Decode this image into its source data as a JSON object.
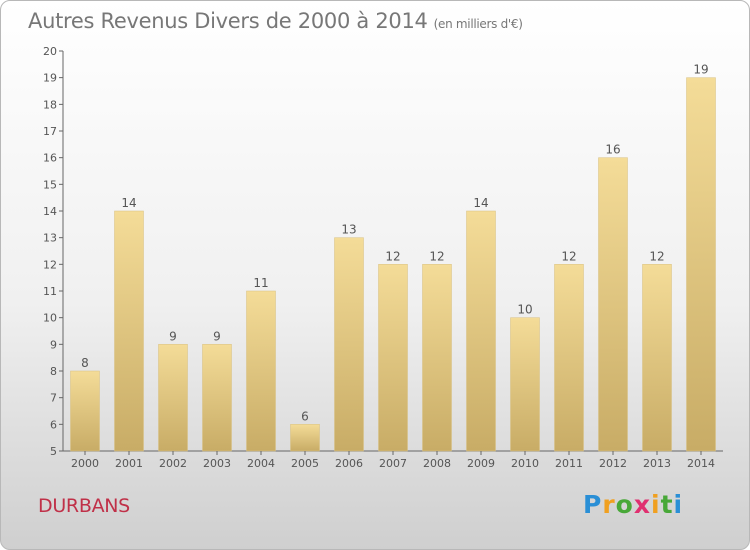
{
  "chart_data": {
    "type": "bar",
    "title": "Autres Revenus Divers de 2000 à 2014",
    "unit_label": "(en milliers d'€)",
    "categories": [
      "2000",
      "2001",
      "2002",
      "2003",
      "2004",
      "2005",
      "2006",
      "2007",
      "2008",
      "2009",
      "2010",
      "2011",
      "2012",
      "2013",
      "2014"
    ],
    "values": [
      8,
      14,
      9,
      9,
      11,
      6,
      13,
      12,
      12,
      14,
      10,
      12,
      16,
      12,
      19
    ],
    "ylim": [
      5,
      20
    ],
    "yticks": [
      5,
      6,
      7,
      8,
      9,
      10,
      11,
      12,
      13,
      14,
      15,
      16,
      17,
      18,
      19,
      20
    ],
    "grid": false,
    "bar_color_light": "#f4dc98",
    "bar_color_dark": "#c8ac66"
  },
  "place_name": "DURBANS",
  "logo": {
    "letters": [
      "P",
      "r",
      "o",
      "x",
      "i",
      "t",
      "i"
    ],
    "colors": [
      "#2a8fd6",
      "#f0a020",
      "#48a838",
      "#e03070",
      "#f0a020",
      "#48a838",
      "#2a8fd6"
    ]
  }
}
